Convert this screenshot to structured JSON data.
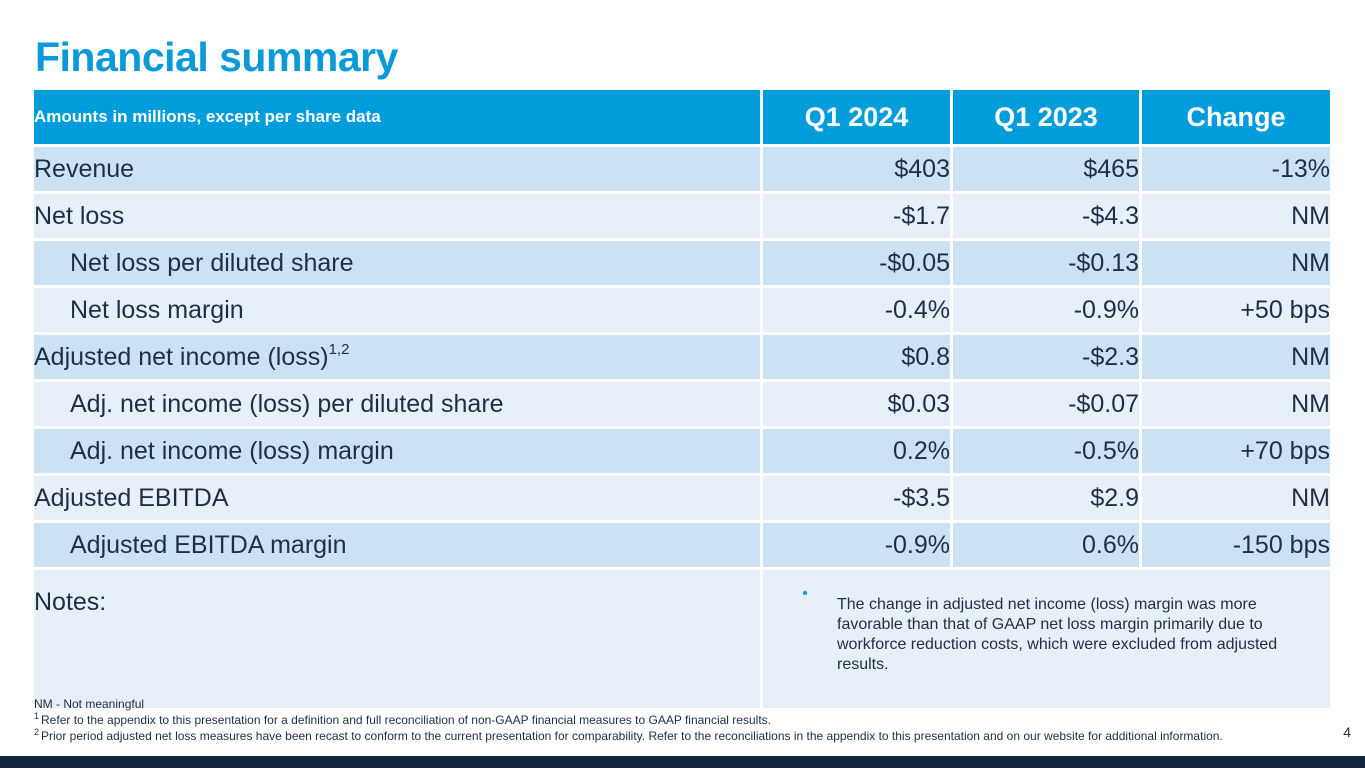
{
  "title": "Financial summary",
  "table": {
    "headers": [
      "Amounts in millions, except per share data",
      "Q1 2024",
      "Q1 2023",
      "Change"
    ],
    "rows": [
      {
        "label": "Revenue",
        "q1_2024": "$403",
        "q1_2023": "$465",
        "change": "-13%"
      },
      {
        "label": "Net loss",
        "q1_2024": "-$1.7",
        "q1_2023": "-$4.3",
        "change": "NM"
      },
      {
        "label": "Net loss per diluted share",
        "q1_2024": "-$0.05",
        "q1_2023": "-$0.13",
        "change": "NM"
      },
      {
        "label": "Net loss margin",
        "q1_2024": "-0.4%",
        "q1_2023": "-0.9%",
        "change": "+50 bps"
      },
      {
        "label": "Adjusted net income (loss)",
        "sup": "1,2",
        "q1_2024": "$0.8",
        "q1_2023": "-$2.3",
        "change": "NM"
      },
      {
        "label": "Adj. net income (loss) per diluted share",
        "q1_2024": "$0.03",
        "q1_2023": "-$0.07",
        "change": "NM"
      },
      {
        "label": "Adj. net income (loss) margin",
        "q1_2024": "0.2%",
        "q1_2023": "-0.5%",
        "change": "+70 bps"
      },
      {
        "label": "Adjusted EBITDA",
        "q1_2024": "-$3.5",
        "q1_2023": "$2.9",
        "change": "NM"
      },
      {
        "label": "Adjusted EBITDA margin",
        "q1_2024": "-0.9%",
        "q1_2023": "0.6%",
        "change": "-150 bps"
      }
    ],
    "notes_label": "Notes:",
    "notes_text": "The change in adjusted net income (loss) margin was more favorable than that of GAAP net loss margin primarily due to workforce reduction costs, which were excluded from adjusted results."
  },
  "footnotes": {
    "nm": "NM - Not meaningful",
    "fn1_mark": "1",
    "fn1": "Refer to the appendix to this presentation for a definition and full reconciliation of non-GAAP financial measures to GAAP financial results.",
    "fn2_mark": "2",
    "fn2": "Prior period adjusted net loss measures have been recast to conform to the current presentation for comparability. Refer to the reconciliations in the appendix to this presentation and on our website for additional information."
  },
  "page_number": "4",
  "colors": {
    "title": "#0b9ad8",
    "header_bg": "#009ddc",
    "row_dark": "#cde1f4",
    "row_light": "#e7eff9",
    "footer_bar": "#14253f"
  }
}
